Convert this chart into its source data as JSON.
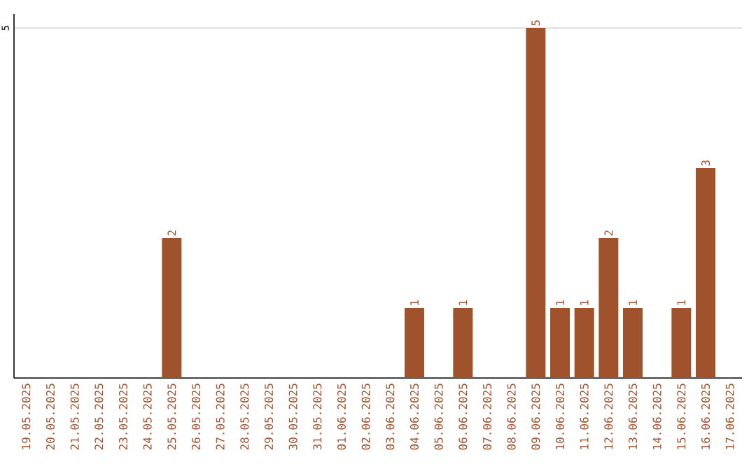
{
  "chart_data": {
    "type": "bar",
    "categories": [
      "19.05.2025",
      "20.05.2025",
      "21.05.2025",
      "22.05.2025",
      "23.05.2025",
      "24.05.2025",
      "25.05.2025",
      "26.05.2025",
      "27.05.2025",
      "28.05.2025",
      "29.05.2025",
      "30.05.2025",
      "31.05.2025",
      "01.06.2025",
      "02.06.2025",
      "03.06.2025",
      "04.06.2025",
      "05.06.2025",
      "06.06.2025",
      "07.06.2025",
      "08.06.2025",
      "09.06.2025",
      "10.06.2025",
      "11.06.2025",
      "12.06.2025",
      "13.06.2025",
      "14.06.2025",
      "15.06.2025",
      "16.06.2025",
      "17.06.2025"
    ],
    "values": [
      0,
      0,
      0,
      0,
      0,
      0,
      2,
      0,
      0,
      0,
      0,
      0,
      0,
      0,
      0,
      0,
      1,
      0,
      1,
      0,
      0,
      5,
      1,
      1,
      2,
      1,
      0,
      1,
      3,
      0
    ],
    "value_labels": [
      null,
      null,
      null,
      null,
      null,
      null,
      "2",
      null,
      null,
      null,
      null,
      null,
      null,
      null,
      null,
      null,
      "1",
      null,
      "1",
      null,
      null,
      "5",
      "1",
      "1",
      "2",
      "1",
      null,
      "1",
      "3",
      null
    ],
    "color": "#a0522d",
    "ylim": [
      0,
      5.2
    ],
    "yticks": [
      5
    ],
    "grid": "y"
  }
}
